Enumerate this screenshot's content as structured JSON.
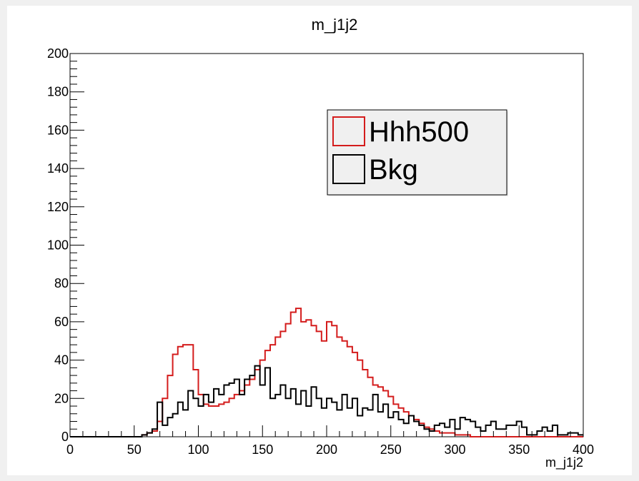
{
  "chart_data": {
    "type": "histogram",
    "title": "m_j1j2",
    "xlabel": "m_j1j2",
    "ylabel": "",
    "xlim": [
      0,
      400
    ],
    "ylim": [
      0,
      200
    ],
    "bin_width": 4,
    "x_ticks": [
      0,
      50,
      100,
      150,
      200,
      250,
      300,
      350,
      400
    ],
    "y_ticks": [
      0,
      20,
      40,
      60,
      80,
      100,
      120,
      140,
      160,
      180,
      200
    ],
    "legend_position": "top-right",
    "colors": {
      "Hhh500": "#d41c1c",
      "Bkg": "#000000"
    },
    "series": [
      {
        "name": "Hhh500",
        "values": [
          0,
          0,
          0,
          0,
          0,
          0,
          0,
          0,
          0,
          0,
          0,
          0,
          0,
          0,
          1,
          2,
          3,
          8,
          20,
          32,
          43,
          47,
          48,
          48,
          35,
          22,
          17,
          16,
          16,
          17,
          18,
          20,
          22,
          24,
          27,
          30,
          35,
          40,
          45,
          48,
          52,
          55,
          59,
          65,
          67,
          60,
          61,
          58,
          55,
          50,
          60,
          58,
          52,
          50,
          47,
          44,
          40,
          35,
          31,
          27,
          26,
          24,
          21,
          17,
          15,
          13,
          11,
          9,
          7,
          5,
          4,
          3,
          2,
          2,
          2,
          1,
          1,
          1,
          0,
          0,
          0,
          0,
          0,
          0,
          0,
          0,
          0,
          0,
          0,
          0,
          0,
          0,
          0,
          0,
          0,
          0,
          0,
          0,
          0,
          0
        ]
      },
      {
        "name": "Bkg",
        "values": [
          0,
          0,
          0,
          0,
          0,
          0,
          0,
          0,
          0,
          0,
          0,
          0,
          0,
          0,
          1,
          2,
          4,
          18,
          6,
          10,
          12,
          18,
          14,
          24,
          20,
          16,
          22,
          18,
          25,
          22,
          27,
          28,
          30,
          22,
          30,
          32,
          37,
          27,
          36,
          20,
          22,
          27,
          20,
          25,
          17,
          24,
          16,
          26,
          20,
          15,
          20,
          18,
          14,
          22,
          15,
          20,
          11,
          15,
          14,
          22,
          13,
          17,
          10,
          13,
          9,
          7,
          11,
          8,
          6,
          4,
          3,
          6,
          7,
          5,
          9,
          4,
          10,
          9,
          8,
          5,
          3,
          6,
          8,
          4,
          4,
          6,
          6,
          8,
          5,
          1,
          1,
          3,
          5,
          3,
          6,
          1,
          1,
          2,
          2,
          1
        ]
      }
    ]
  }
}
